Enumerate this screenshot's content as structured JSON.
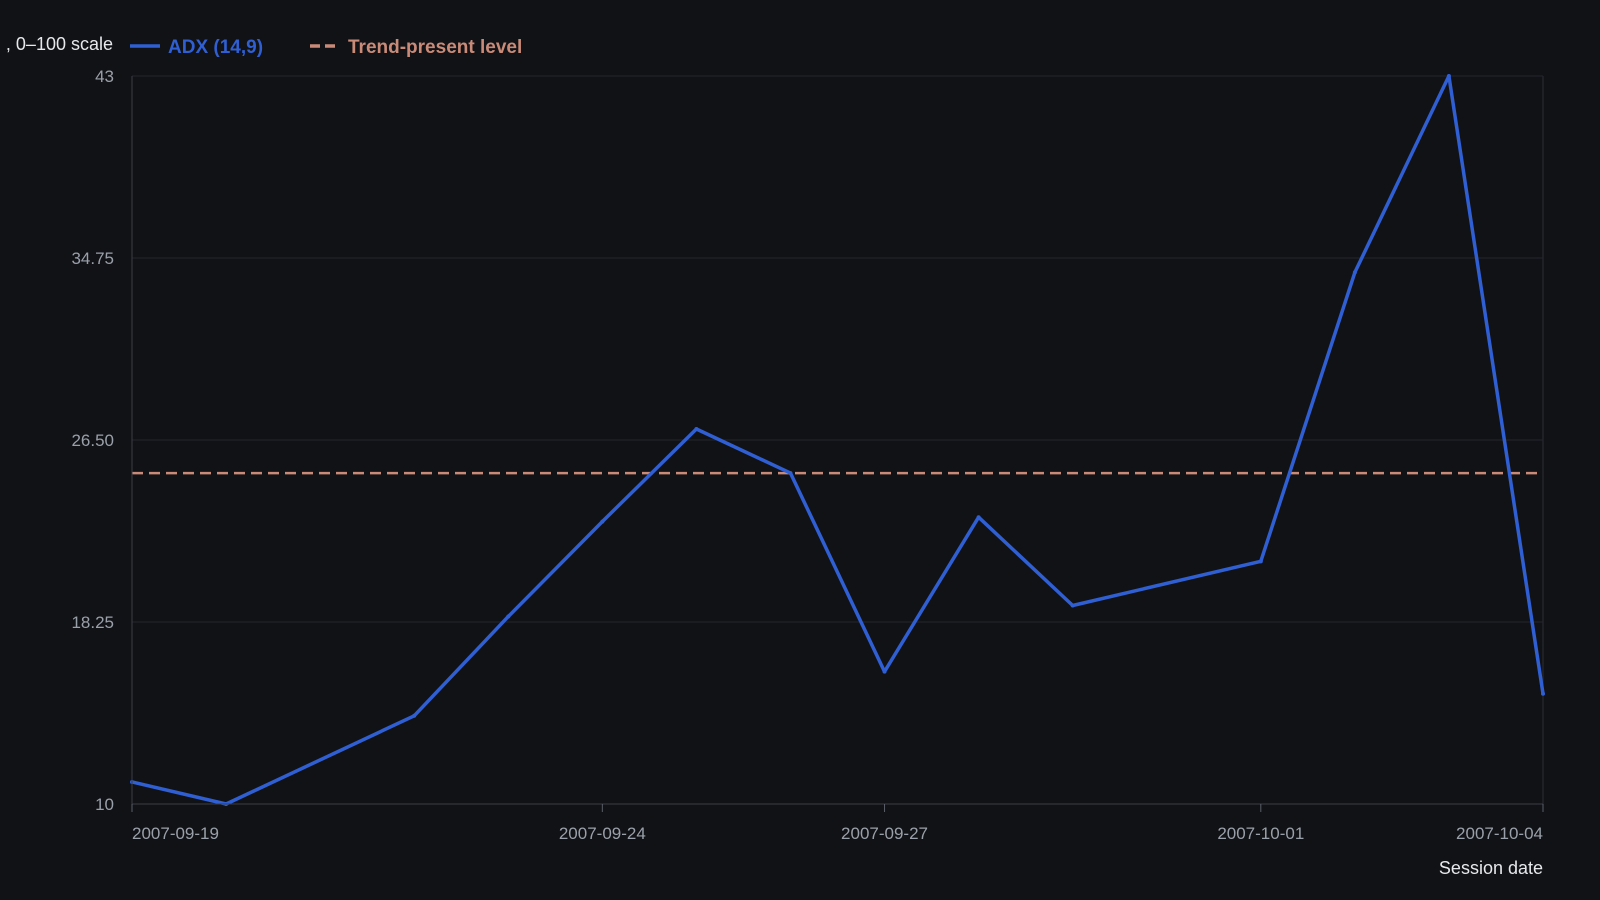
{
  "chart_data": {
    "type": "line",
    "ylabel": ", 0–100 scale",
    "xlabel": "Session date",
    "ylim": [
      10,
      43
    ],
    "y_ticks": [
      "10",
      "18.25",
      "26.50",
      "34.75",
      "43"
    ],
    "x_ticks": [
      {
        "date": "2007-09-19",
        "label": "2007-09-19"
      },
      {
        "date": "2007-09-24",
        "label": "2007-09-24"
      },
      {
        "date": "2007-09-27",
        "label": "2007-09-27"
      },
      {
        "date": "2007-10-01",
        "label": "2007-10-01"
      },
      {
        "date": "2007-10-04",
        "label": "2007-10-04"
      }
    ],
    "grid": true,
    "legend_position": "top-left",
    "series": [
      {
        "name": "ADX (14,9)",
        "color": "#2f5fd3",
        "x": [
          "2007-09-19",
          "2007-09-20",
          "2007-09-22",
          "2007-09-23",
          "2007-09-24",
          "2007-09-25",
          "2007-09-26",
          "2007-09-27",
          "2007-09-28",
          "2007-09-29",
          "2007-10-01",
          "2007-10-02",
          "2007-10-03",
          "2007-10-04"
        ],
        "values": [
          11.0,
          10.0,
          14.0,
          18.5,
          22.8,
          27.0,
          25.0,
          16.0,
          23.0,
          19.0,
          21.0,
          34.1,
          43.0,
          15.0
        ]
      }
    ],
    "reference_lines": [
      {
        "name": "Trend-present level",
        "value": 25.0,
        "color": "#c98a78",
        "style": "dashed"
      }
    ]
  }
}
